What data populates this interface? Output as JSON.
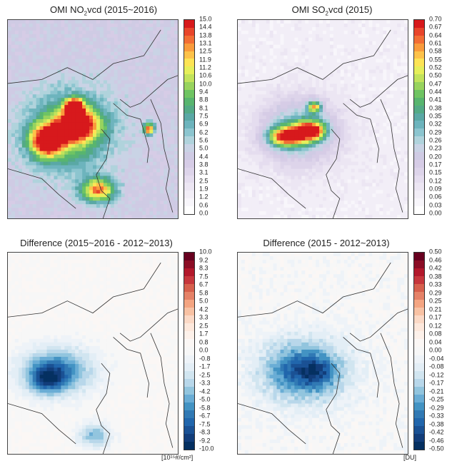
{
  "panels": [
    {
      "id": "no2",
      "title_main": "OMI NO",
      "title_sub": "2",
      "title_rest": "vcd (2015~2016)",
      "colorbar_type": "sequential",
      "ticks": [
        "15.0",
        "14.4",
        "13.8",
        "13.1",
        "12.5",
        "11.9",
        "11.2",
        "10.6",
        "10.0",
        "9.4",
        "8.8",
        "8.1",
        "7.5",
        "6.9",
        "6.2",
        "5.6",
        "5.0",
        "4.4",
        "3.8",
        "3.1",
        "2.5",
        "1.9",
        "1.2",
        "0.6",
        "0.0"
      ],
      "unit": ""
    },
    {
      "id": "so2",
      "title_main": "OMI SO",
      "title_sub": "2",
      "title_rest": "vcd (2015)",
      "colorbar_type": "sequential",
      "ticks": [
        "0.70",
        "0.67",
        "0.64",
        "0.61",
        "0.58",
        "0.55",
        "0.52",
        "0.50",
        "0.47",
        "0.44",
        "0.41",
        "0.38",
        "0.35",
        "0.32",
        "0.29",
        "0.26",
        "0.23",
        "0.20",
        "0.17",
        "0.15",
        "0.12",
        "0.09",
        "0.06",
        "0.03",
        "0.00"
      ],
      "unit": ""
    },
    {
      "id": "no2diff",
      "title_main": "Difference (2015~2016 - 2012~2013)",
      "title_sub": "",
      "title_rest": "",
      "colorbar_type": "diverging",
      "ticks": [
        "10.0",
        "9.2",
        "8.3",
        "7.5",
        "6.7",
        "5.8",
        "5.0",
        "4.2",
        "3.3",
        "2.5",
        "1.7",
        "0.8",
        "0.0",
        "-0.8",
        "-1.7",
        "-2.5",
        "-3.3",
        "-4.2",
        "-5.0",
        "-5.8",
        "-6.7",
        "-7.5",
        "-8.3",
        "-9.2",
        "-10.0"
      ],
      "unit": "[10¹⁵#/cm²]"
    },
    {
      "id": "so2diff",
      "title_main": "Difference (2015 - 2012~2013)",
      "title_sub": "",
      "title_rest": "",
      "colorbar_type": "diverging",
      "ticks": [
        "0.50",
        "0.46",
        "0.42",
        "0.38",
        "0.33",
        "0.29",
        "0.25",
        "0.21",
        "0.17",
        "0.12",
        "0.08",
        "0.04",
        "0.00",
        "-0.04",
        "-0.08",
        "-0.12",
        "-0.17",
        "-0.21",
        "-0.25",
        "-0.29",
        "-0.33",
        "-0.38",
        "-0.42",
        "-0.46",
        "-0.50"
      ],
      "unit": "[DU]"
    }
  ],
  "colors": {
    "sequential": [
      "#d7191c",
      "#e8452b",
      "#f26d35",
      "#f99b3c",
      "#fdc24a",
      "#fde455",
      "#e6ef5a",
      "#c2e35c",
      "#98d35e",
      "#6fc463",
      "#58b56f",
      "#53aa86",
      "#5aa8a5",
      "#6db4bd",
      "#8cc5cf",
      "#b0d3dc",
      "#c9d3e5",
      "#cfcbe4",
      "#d6cce6",
      "#ddd4ea",
      "#e5ddef",
      "#ece6f3",
      "#f2eef7",
      "#f8f6fb",
      "#ffffff"
    ],
    "diverging": [
      "#67001f",
      "#8b0d25",
      "#b2182b",
      "#c6363c",
      "#d6604d",
      "#e58268",
      "#f4a582",
      "#f8c2a4",
      "#fbd9c6",
      "#fde8dc",
      "#fdf1ea",
      "#fbf7f5",
      "#f7f7f7",
      "#eef3f8",
      "#e3eef6",
      "#d1e5f0",
      "#b8d7ea",
      "#92c5de",
      "#6aadd5",
      "#4393c3",
      "#3179b4",
      "#2166ac",
      "#1a5194",
      "#123d7a",
      "#053061"
    ]
  }
}
